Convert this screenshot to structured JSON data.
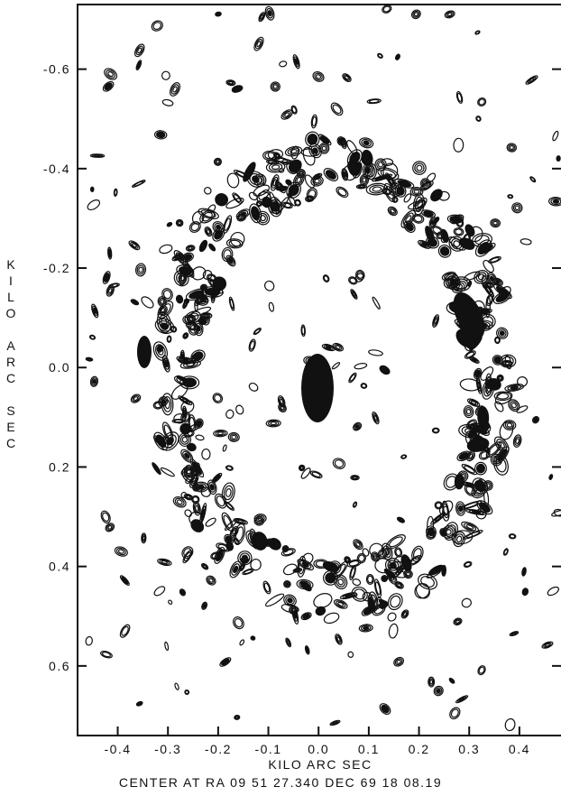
{
  "chart_data": {
    "type": "contour",
    "xlabel": "KILO ARC SEC",
    "ylabel": "KILO ARC SEC",
    "caption": "CENTER AT RA 09 51 27.340   DEC 69 18 08.19",
    "xlim": [
      -0.48,
      0.49
    ],
    "ylim": [
      0.74,
      -0.73
    ],
    "xticks": [
      -0.4,
      -0.3,
      -0.2,
      -0.1,
      {
        "value": 0,
        "label": "0.0"
      },
      0.1,
      0.2,
      0.3,
      0.4
    ],
    "yticks": [
      -0.6,
      -0.4,
      -0.2,
      {
        "value": 0,
        "label": "0.0"
      },
      0.2,
      0.4,
      0.6
    ]
  }
}
